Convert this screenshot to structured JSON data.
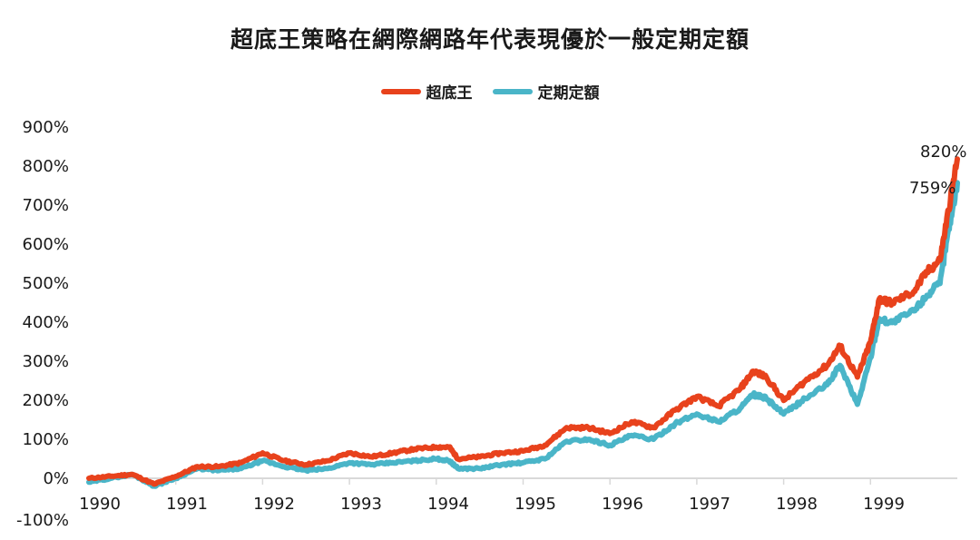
{
  "title": "超底王策略在網際網路年代表現優於一般定期定額",
  "legend": [
    {
      "label": "超底王",
      "color": "#e8421c"
    },
    {
      "label": "定期定額",
      "color": "#4ab5c8"
    }
  ],
  "y_ticks": [
    "900%",
    "800%",
    "700%",
    "600%",
    "500%",
    "400%",
    "300%",
    "200%",
    "100%",
    "0%",
    "-100%"
  ],
  "x_ticks": [
    "1990",
    "1991",
    "1992",
    "1993",
    "1994",
    "1995",
    "1996",
    "1997",
    "1998",
    "1999"
  ],
  "end_labels": {
    "series1": "820%",
    "series2": "759%"
  },
  "chart_data": {
    "type": "line",
    "title": "超底王策略在網際網路年代表現優於一般定期定額",
    "xlabel": "",
    "ylabel": "",
    "ylim": [
      -100,
      900
    ],
    "xlim": [
      1990,
      2000
    ],
    "grid": false,
    "legend_position": "top",
    "x_tick_labels": [
      "1990",
      "1991",
      "1992",
      "1993",
      "1994",
      "1995",
      "1996",
      "1997",
      "1998",
      "1999"
    ],
    "y_tick_labels": [
      "-100%",
      "0%",
      "100%",
      "200%",
      "300%",
      "400%",
      "500%",
      "600%",
      "700%",
      "800%",
      "900%"
    ],
    "x": [
      1990.0,
      1990.25,
      1990.5,
      1990.75,
      1991.0,
      1991.25,
      1991.5,
      1991.75,
      1992.0,
      1992.25,
      1992.5,
      1992.75,
      1993.0,
      1993.25,
      1993.5,
      1993.75,
      1994.0,
      1994.15,
      1994.25,
      1994.5,
      1994.75,
      1995.0,
      1995.25,
      1995.5,
      1995.75,
      1996.0,
      1996.25,
      1996.5,
      1996.75,
      1997.0,
      1997.25,
      1997.5,
      1997.65,
      1997.8,
      1998.0,
      1998.25,
      1998.5,
      1998.65,
      1998.85,
      1999.0,
      1999.1,
      1999.25,
      1999.5,
      1999.65,
      1999.8,
      1999.9,
      2000.0
    ],
    "series": [
      {
        "name": "超底王",
        "color": "#e8421c",
        "values": [
          0,
          5,
          10,
          -15,
          5,
          30,
          30,
          40,
          65,
          45,
          35,
          45,
          65,
          55,
          65,
          75,
          80,
          80,
          50,
          55,
          65,
          70,
          85,
          130,
          130,
          115,
          145,
          130,
          175,
          210,
          185,
          230,
          275,
          260,
          200,
          250,
          290,
          340,
          260,
          350,
          460,
          450,
          480,
          530,
          560,
          690,
          820
        ]
      },
      {
        "name": "定期定額",
        "color": "#4ab5c8",
        "values": [
          -10,
          0,
          10,
          -20,
          0,
          25,
          20,
          25,
          45,
          30,
          20,
          25,
          40,
          35,
          40,
          45,
          50,
          45,
          25,
          25,
          35,
          40,
          50,
          95,
          100,
          85,
          110,
          100,
          140,
          165,
          145,
          180,
          215,
          205,
          165,
          205,
          240,
          290,
          190,
          310,
          410,
          400,
          430,
          470,
          500,
          640,
          759
        ]
      }
    ],
    "annotations": [
      {
        "text": "820%",
        "series": "超底王",
        "x": 2000.0,
        "y": 820
      },
      {
        "text": "759%",
        "series": "定期定額",
        "x": 2000.0,
        "y": 759
      }
    ]
  }
}
